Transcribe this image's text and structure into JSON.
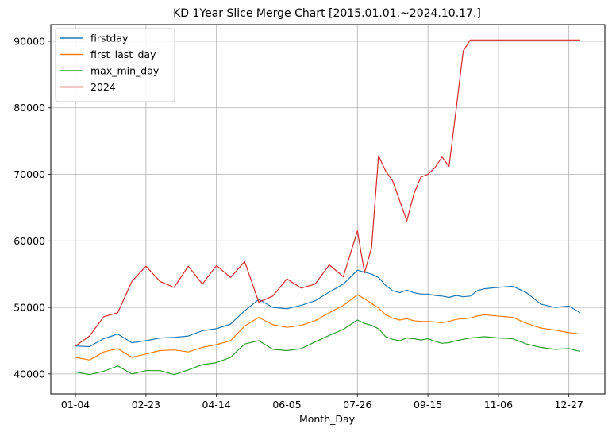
{
  "chart_data": {
    "type": "line",
    "title": "KD 1Year Slice Merge Chart [2015.01.01.~2024.10.17.]",
    "xlabel": "Month_Day",
    "ylabel": "",
    "ylim": [
      37000,
      92500
    ],
    "grid": true,
    "legend_position": "top-left",
    "x": [
      0,
      10,
      20,
      30,
      40,
      50,
      60,
      70,
      80,
      90,
      100,
      110,
      120,
      130,
      140,
      150,
      160,
      170,
      180,
      190,
      200,
      205,
      210,
      215,
      220,
      225,
      230,
      235,
      240,
      245,
      250,
      255,
      260,
      265,
      270,
      275,
      280,
      285,
      290,
      300,
      310,
      320,
      330,
      340,
      350,
      358
    ],
    "x_ticks": [
      {
        "pos": 0,
        "label": "01-04"
      },
      {
        "pos": 50,
        "label": "02-23"
      },
      {
        "pos": 100,
        "label": "04-14"
      },
      {
        "pos": 150,
        "label": "06-05"
      },
      {
        "pos": 200,
        "label": "07-26"
      },
      {
        "pos": 250,
        "label": "09-15"
      },
      {
        "pos": 300,
        "label": "11-06"
      },
      {
        "pos": 350,
        "label": "12-27"
      }
    ],
    "y_ticks": [
      40000,
      50000,
      60000,
      70000,
      80000,
      90000
    ],
    "y_tick_labels": [
      "40000",
      "50000",
      "60000",
      "70000",
      "80000",
      "90000"
    ],
    "series": [
      {
        "name": "firstday",
        "color": "#1f77b4",
        "values": [
          44200,
          44100,
          45300,
          46000,
          44700,
          45000,
          45400,
          45500,
          45700,
          46500,
          46800,
          47500,
          49500,
          51200,
          50000,
          49800,
          50300,
          51000,
          52300,
          53500,
          55600,
          55300,
          55000,
          54500,
          53300,
          52500,
          52200,
          52600,
          52200,
          52000,
          52000,
          51800,
          51700,
          51500,
          51800,
          51600,
          51700,
          52500,
          52800,
          53000,
          53200,
          52200,
          50500,
          50000,
          50200,
          49200
        ]
      },
      {
        "name": "first_last_day",
        "color": "#ff7f0e",
        "values": [
          42500,
          42100,
          43300,
          43800,
          42500,
          43000,
          43500,
          43600,
          43300,
          44000,
          44400,
          45000,
          47200,
          48500,
          47400,
          47000,
          47300,
          48000,
          49200,
          50300,
          51900,
          51300,
          50600,
          49900,
          48900,
          48400,
          48100,
          48300,
          48000,
          47900,
          47900,
          47800,
          47700,
          47900,
          48200,
          48300,
          48400,
          48700,
          48900,
          48700,
          48500,
          47600,
          46900,
          46600,
          46200,
          46000
        ]
      },
      {
        "name": "max_min_day",
        "color": "#2ca02c",
        "values": [
          40300,
          39900,
          40400,
          41200,
          40000,
          40500,
          40500,
          39900,
          40600,
          41400,
          41700,
          42500,
          44500,
          45000,
          43700,
          43500,
          43800,
          44800,
          45800,
          46700,
          48100,
          47600,
          47300,
          46800,
          45600,
          45200,
          45000,
          45400,
          45300,
          45100,
          45300,
          44900,
          44600,
          44700,
          45000,
          45200,
          45400,
          45500,
          45600,
          45400,
          45300,
          44500,
          44000,
          43700,
          43800,
          43400
        ]
      },
      {
        "name": "2024",
        "color": "#d62728",
        "values": [
          44200,
          45700,
          48600,
          49200,
          53900,
          56200,
          53900,
          53000,
          56200,
          53500,
          56300,
          54500,
          56900,
          50800,
          51700,
          54300,
          52900,
          53500,
          56400,
          54600,
          61500,
          55200,
          59000,
          72800,
          70500,
          69000,
          66000,
          63000,
          67000,
          69600,
          70000,
          71000,
          72600,
          71200,
          79700,
          88500,
          90200,
          90200,
          90200,
          90200,
          90200,
          90200,
          90200,
          90200,
          90200,
          90200
        ]
      }
    ]
  }
}
